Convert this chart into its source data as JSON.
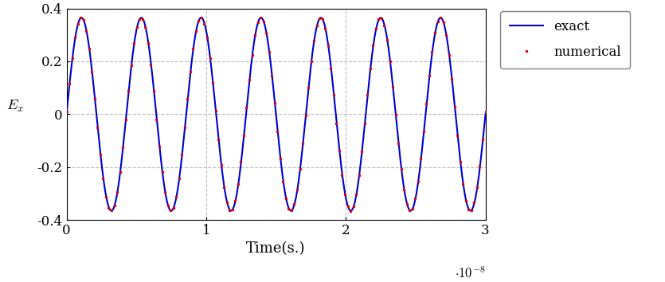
{
  "title": "",
  "xlabel": "Time(s.)",
  "ylabel": "$E_x$",
  "xlim": [
    0,
    3e-08
  ],
  "ylim": [
    -0.4,
    0.4
  ],
  "xticks": [
    0,
    1e-08,
    2e-08,
    3e-08
  ],
  "xtick_labels": [
    "0",
    "1",
    "2",
    "3"
  ],
  "yticks": [
    -0.4,
    -0.2,
    0.0,
    0.2,
    0.4
  ],
  "ytick_labels": [
    "-0.4",
    "-0.2",
    "0",
    "0.2",
    "0.4"
  ],
  "exact_color": "#0000cc",
  "numerical_color": "#dd0000",
  "amplitude": 0.365,
  "frequency": 7,
  "num_points_exact": 3000,
  "num_points_numerical": 150,
  "legend_exact": "exact",
  "legend_numerical": "numerical",
  "background_color": "#ffffff",
  "grid_color": "#bbbbbb",
  "exponent_label": "$\\cdot 10^{-8}$",
  "figsize": [
    8.35,
    3.54
  ],
  "dpi": 100
}
